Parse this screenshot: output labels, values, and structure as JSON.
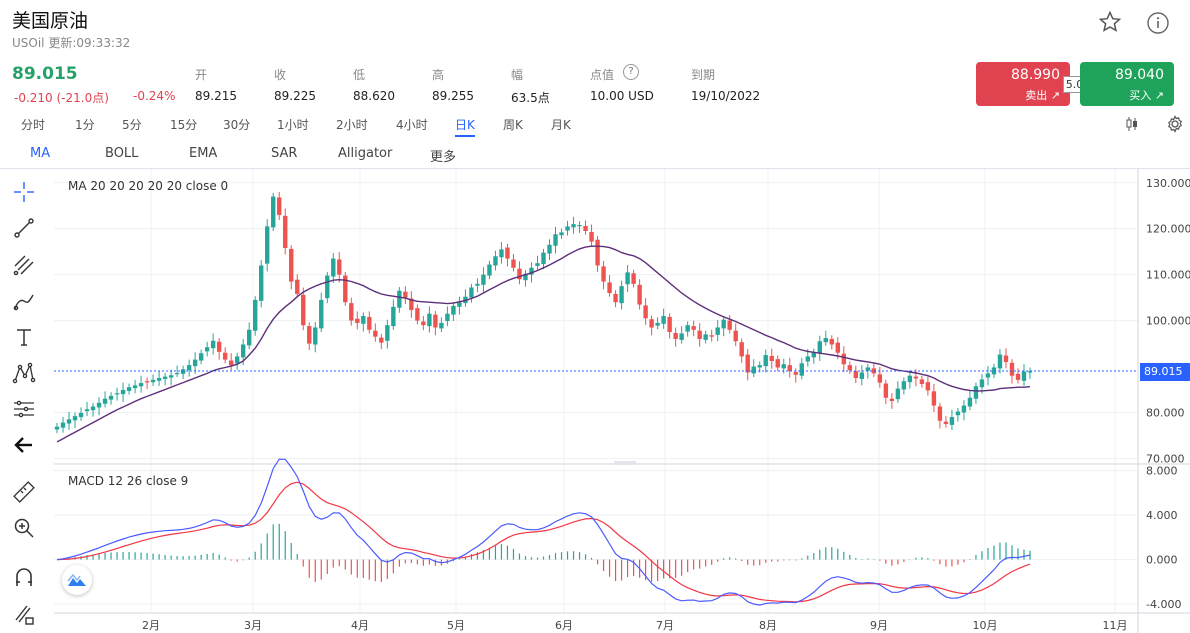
{
  "header": {
    "title": "美国原油",
    "symbol_update": "USOil 更新:09:33:32",
    "star_icon": "star-icon",
    "info_icon": "info-icon"
  },
  "quote": {
    "price": "89.015",
    "change": "-0.210 (-21.0点)",
    "change_pct": "-0.24%",
    "stats": [
      {
        "label": "开",
        "value": "89.215"
      },
      {
        "label": "收",
        "value": "89.225"
      },
      {
        "label": "低",
        "value": "88.620"
      },
      {
        "label": "高",
        "value": "89.255"
      },
      {
        "label": "幅",
        "value": "63.5点"
      },
      {
        "label": "点值",
        "value": "10.00 USD"
      },
      {
        "label": "到期",
        "value": "19/10/2022"
      }
    ]
  },
  "trade": {
    "sell_price": "88.990",
    "sell_label": "卖出",
    "buy_price": "89.040",
    "buy_label": "买入",
    "spread": "5.0",
    "sell_color": "#e0424f",
    "buy_color": "#1fa35b"
  },
  "timeframes": [
    "分时",
    "1分",
    "5分",
    "15分",
    "30分",
    "1小时",
    "2小时",
    "4小时",
    "日K",
    "周K",
    "月K"
  ],
  "active_timeframe": "日K",
  "indicators": [
    "MA",
    "BOLL",
    "EMA",
    "SAR",
    "Alligator",
    "更多"
  ],
  "active_indicator": "MA",
  "tools": [
    "crosshair-icon",
    "trend-line-icon",
    "fib-icon",
    "brush-icon",
    "text-icon",
    "pattern-icon",
    "measure-icon",
    "back-arrow-icon",
    "ruler-icon",
    "zoom-icon",
    "magnet-icon",
    "lock-pencil-icon"
  ],
  "main_pane": {
    "label": "MA  20 20 20 20 20 close 0"
  },
  "macd_pane": {
    "label": "MACD  12 26 close 9"
  },
  "last_price_tag": "89.015",
  "chart_data": [
    {
      "type": "candlestick",
      "title": "MA 20 20 20 20 20 close 0",
      "y_ticks": [
        "130.000",
        "120.000",
        "110.000",
        "100.000",
        "80.000",
        "70.000"
      ],
      "ylim": [
        69,
        133
      ],
      "x_ticks": [
        "2月",
        "3月",
        "4月",
        "5月",
        "6月",
        "7月",
        "8月",
        "9月",
        "10月",
        "11月"
      ],
      "last_price": 89.015,
      "close": [
        76.9,
        77.8,
        78.5,
        79.2,
        79.9,
        80.7,
        81.3,
        82.1,
        83.0,
        83.6,
        84.2,
        84.9,
        85.5,
        85.9,
        86.4,
        86.8,
        87.1,
        87.5,
        87.8,
        88.1,
        88.6,
        89.4,
        90.3,
        91.5,
        92.9,
        94.2,
        95.6,
        93.2,
        91.5,
        90.3,
        92.2,
        94.8,
        98.0,
        104.5,
        112.0,
        120.5,
        127.0,
        123.0,
        115.8,
        108.5,
        105.8,
        99.0,
        95.0,
        98.5,
        104.5,
        109.8,
        113.5,
        110.0,
        104.0,
        100.0,
        99.5,
        101.0,
        98.0,
        96.5,
        95.2,
        99.0,
        103.0,
        106.5,
        105.0,
        102.3,
        100.0,
        99.0,
        101.5,
        98.5,
        99.5,
        101.5,
        103.2,
        104.0,
        105.2,
        107.2,
        108.0,
        110.0,
        112.2,
        114.0,
        115.5,
        113.5,
        111.5,
        109.0,
        110.2,
        111.5,
        112.5,
        114.8,
        116.5,
        118.8,
        119.2,
        120.5,
        121.0,
        120.8,
        119.5,
        117.2,
        112.0,
        108.5,
        106.0,
        104.0,
        107.5,
        110.5,
        108.0,
        103.5,
        100.5,
        98.5,
        99.5,
        101.0,
        97.5,
        96.0,
        97.2,
        99.0,
        98.0,
        96.0,
        97.0,
        96.5,
        98.5,
        100.2,
        98.0,
        95.5,
        92.2,
        88.7,
        90.0,
        90.3,
        92.5,
        91.2,
        89.8,
        90.5,
        89.0,
        88.2,
        90.7,
        92.2,
        93.1,
        95.5,
        96.2,
        94.8,
        93.0,
        90.5,
        89.2,
        87.5,
        88.7,
        89.8,
        88.5,
        86.5,
        83.2,
        82.5,
        85.2,
        86.8,
        88.0,
        87.4,
        86.2,
        84.8,
        81.5,
        78.2,
        77.5,
        79.0,
        80.2,
        81.5,
        83.2,
        85.7,
        87.2,
        88.5,
        89.8,
        92.6,
        91.0,
        88.0,
        87.1,
        88.9,
        89.0
      ],
      "ma20": [
        73.6,
        74.3,
        75.0,
        75.7,
        76.4,
        77.1,
        77.8,
        78.5,
        79.2,
        79.9,
        80.6,
        81.2,
        81.8,
        82.4,
        83.0,
        83.5,
        84.0,
        84.5,
        85.0,
        85.5,
        86.0,
        86.5,
        87.0,
        87.5,
        88.0,
        88.5,
        89.1,
        89.5,
        89.8,
        90.1,
        90.5,
        91.2,
        92.5,
        94.0,
        96.0,
        98.3,
        100.3,
        101.8,
        103.0,
        104.0,
        105.2,
        106.2,
        106.9,
        107.5,
        108.0,
        108.4,
        108.8,
        108.9,
        108.8,
        108.5,
        108.1,
        107.6,
        106.9,
        106.3,
        105.8,
        105.5,
        105.3,
        105.1,
        104.9,
        104.5,
        104.2,
        104.1,
        104.0,
        103.9,
        103.8,
        103.7,
        103.8,
        104.1,
        104.4,
        104.8,
        105.3,
        106.0,
        106.7,
        107.4,
        108.1,
        108.7,
        109.2,
        109.6,
        110.0,
        110.4,
        110.9,
        111.5,
        112.1,
        112.8,
        113.5,
        114.3,
        115.0,
        115.6,
        116.0,
        116.2,
        116.2,
        116.1,
        115.9,
        115.4,
        114.8,
        114.4,
        114.1,
        113.5,
        112.6,
        111.5,
        110.4,
        109.3,
        108.2,
        107.1,
        106.0,
        105.1,
        104.2,
        103.4,
        102.7,
        102.0,
        101.4,
        100.8,
        100.3,
        99.8,
        99.2,
        98.6,
        98.0,
        97.4,
        96.8,
        96.3,
        95.7,
        95.2,
        94.6,
        94.0,
        93.6,
        93.3,
        93.1,
        92.9,
        92.7,
        92.5,
        92.3,
        92.0,
        91.7,
        91.4,
        91.2,
        91.0,
        90.8,
        90.5,
        90.0,
        89.5,
        89.2,
        89.0,
        88.8,
        88.6,
        88.3,
        88.0,
        87.5,
        86.8,
        86.2,
        85.7,
        85.3,
        85.0,
        84.8,
        84.7,
        84.7,
        84.8,
        84.9,
        85.2,
        85.3,
        85.4,
        85.5,
        85.5,
        85.6
      ]
    },
    {
      "type": "line",
      "title": "MACD 12 26 close 9",
      "y_ticks": [
        "8.000",
        "4.000",
        "0.000",
        "-4.000"
      ],
      "ylim": [
        -4.8,
        8.5
      ],
      "series": [
        {
          "name": "MACD",
          "color": "#4b5bff"
        },
        {
          "name": "Signal",
          "color": "#f23645"
        },
        {
          "name": "Histogram",
          "color": "#26a69a"
        }
      ]
    }
  ]
}
